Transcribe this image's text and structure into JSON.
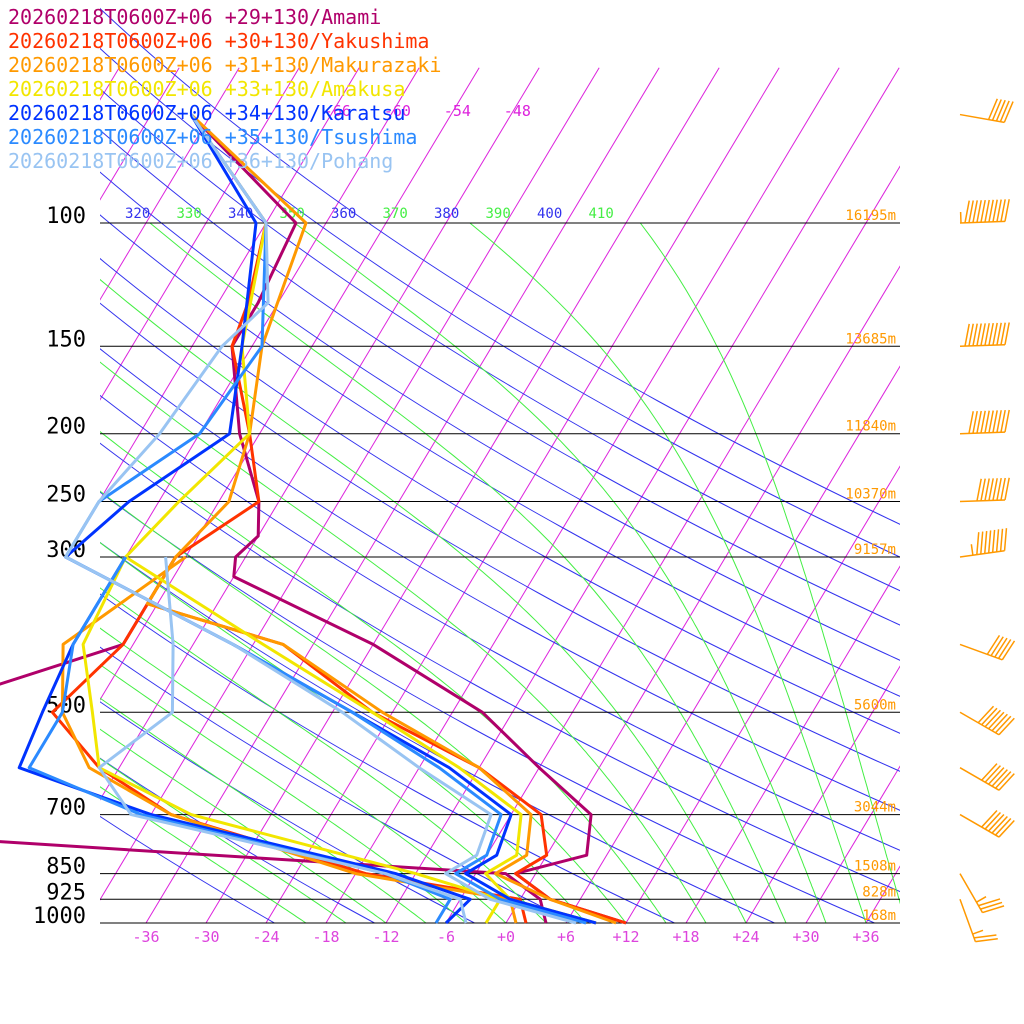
{
  "chart_data": {
    "type": "line",
    "pressure_levels": [
      100,
      150,
      200,
      250,
      300,
      500,
      700,
      850,
      925,
      1000
    ],
    "pressure_labels": [
      "100",
      "150",
      "200",
      "250",
      "300",
      "500",
      "700",
      "850",
      "925",
      "1000"
    ],
    "height_labels": [
      {
        "p": 100,
        "text": "16195m"
      },
      {
        "p": 150,
        "text": "13685m"
      },
      {
        "p": 200,
        "text": "11840m"
      },
      {
        "p": 250,
        "text": "10370m"
      },
      {
        "p": 300,
        "text": "9157m"
      },
      {
        "p": 500,
        "text": "5600m"
      },
      {
        "p": 700,
        "text": "3044m"
      },
      {
        "p": 850,
        "text": "1508m"
      },
      {
        "p": 925,
        "text": "828m"
      },
      {
        "p": 1000,
        "text": "168m"
      }
    ],
    "temperature_ticks": [
      "-36",
      "-30",
      "-24",
      "-18",
      "-12",
      "-6",
      "+0",
      "+6",
      "+12",
      "+18",
      "+24",
      "+30",
      "+36"
    ],
    "temperature_tick_values": [
      -36,
      -30,
      -24,
      -18,
      -12,
      -6,
      0,
      6,
      12,
      18,
      24,
      30,
      36
    ],
    "upper_isotherm_labels": [
      {
        "t": -66,
        "text": "-66"
      },
      {
        "t": -60,
        "text": "-60"
      },
      {
        "t": -54,
        "text": "-54"
      },
      {
        "t": -48,
        "text": "-48"
      }
    ],
    "theta_labels": [
      "320",
      "330",
      "340",
      "350",
      "360",
      "370",
      "380",
      "390",
      "400",
      "410"
    ],
    "series": [
      {
        "name": "20260218T0600Z+06 +29+130/Amami",
        "color": "#b0006a",
        "temperature": [
          [
            70,
            -80
          ],
          [
            100,
            -63
          ],
          [
            130,
            -62
          ],
          [
            150,
            -62
          ],
          [
            200,
            -56
          ],
          [
            250,
            -50
          ],
          [
            280,
            -48
          ],
          [
            300,
            -49
          ],
          [
            320,
            -48
          ],
          [
            400,
            -30
          ],
          [
            500,
            -15
          ],
          [
            600,
            -6
          ],
          [
            700,
            2
          ],
          [
            800,
            4
          ],
          [
            850,
            -2
          ],
          [
            925,
            3
          ],
          [
            1000,
            12
          ]
        ],
        "dewpoint": [
          [
            300,
            -55
          ],
          [
            400,
            -55
          ],
          [
            500,
            -72
          ],
          [
            610,
            -100
          ],
          [
            700,
            -100
          ],
          [
            850,
            -3
          ],
          [
            925,
            2
          ],
          [
            1000,
            4
          ]
        ]
      },
      {
        "name": "20260218T0600Z+06 +30+130/Yakushima",
        "color": "#ff3300",
        "temperature": [
          [
            70,
            -80
          ],
          [
            100,
            -66
          ],
          [
            130,
            -63
          ],
          [
            150,
            -62
          ],
          [
            200,
            -55
          ],
          [
            250,
            -50
          ],
          [
            300,
            -55
          ],
          [
            350,
            -55
          ],
          [
            400,
            -39
          ],
          [
            500,
            -26
          ],
          [
            600,
            -12
          ],
          [
            700,
            -3
          ],
          [
            800,
            0
          ],
          [
            850,
            -2
          ],
          [
            925,
            3
          ],
          [
            1000,
            12
          ]
        ],
        "dewpoint": [
          [
            300,
            -55
          ],
          [
            400,
            -55
          ],
          [
            500,
            -58
          ],
          [
            600,
            -50
          ],
          [
            700,
            -40
          ],
          [
            850,
            -17
          ],
          [
            925,
            0
          ],
          [
            1000,
            2
          ]
        ]
      },
      {
        "name": "20260218T0600Z+06 +31+130/Makurazaki",
        "color": "#ff9900",
        "temperature": [
          [
            70,
            -80
          ],
          [
            100,
            -62
          ],
          [
            150,
            -59
          ],
          [
            200,
            -55
          ],
          [
            250,
            -53
          ],
          [
            300,
            -55
          ],
          [
            350,
            -55
          ],
          [
            400,
            -39
          ],
          [
            500,
            -25
          ],
          [
            600,
            -12
          ],
          [
            700,
            -4
          ],
          [
            800,
            -2
          ],
          [
            850,
            -4
          ],
          [
            925,
            3
          ],
          [
            1000,
            11
          ]
        ],
        "dewpoint": [
          [
            300,
            -54
          ],
          [
            400,
            -61
          ],
          [
            500,
            -57
          ],
          [
            600,
            -51
          ],
          [
            700,
            -40
          ],
          [
            850,
            -18
          ],
          [
            925,
            -1
          ],
          [
            1000,
            1
          ]
        ]
      },
      {
        "name": "20260218T0600Z+06 +33+130/Amakusa",
        "color": "#f2e600",
        "temperature": [
          [
            70,
            -80
          ],
          [
            100,
            -66
          ],
          [
            150,
            -61
          ],
          [
            200,
            -55
          ],
          [
            250,
            -58
          ],
          [
            300,
            -60
          ],
          [
            400,
            -41
          ],
          [
            500,
            -26
          ],
          [
            600,
            -14
          ],
          [
            700,
            -5
          ],
          [
            800,
            -3
          ],
          [
            850,
            -5
          ],
          [
            925,
            -1
          ],
          [
            1000,
            9
          ]
        ],
        "dewpoint": [
          [
            300,
            -60
          ],
          [
            400,
            -59
          ],
          [
            500,
            -54
          ],
          [
            600,
            -50
          ],
          [
            700,
            -38
          ],
          [
            850,
            -12
          ],
          [
            925,
            -2
          ],
          [
            1000,
            -2
          ]
        ]
      },
      {
        "name": "20260218T0600Z+06 +34+130/Karatsu",
        "color": "#0033ff",
        "temperature": [
          [
            70,
            -80
          ],
          [
            100,
            -67
          ],
          [
            150,
            -61
          ],
          [
            200,
            -57
          ],
          [
            250,
            -63
          ],
          [
            300,
            -66
          ],
          [
            400,
            -44
          ],
          [
            500,
            -28
          ],
          [
            600,
            -15
          ],
          [
            700,
            -6
          ],
          [
            800,
            -5
          ],
          [
            850,
            -7
          ],
          [
            925,
            -1
          ],
          [
            1000,
            9
          ]
        ],
        "dewpoint": [
          [
            300,
            -60
          ],
          [
            400,
            -60
          ],
          [
            500,
            -59
          ],
          [
            600,
            -58
          ],
          [
            700,
            -42
          ],
          [
            850,
            -14
          ],
          [
            925,
            -5
          ],
          [
            1000,
            -6
          ]
        ]
      },
      {
        "name": "20260218T0600Z+06 +35+130/Tsushima",
        "color": "#2b8aff",
        "temperature": [
          [
            70,
            -80
          ],
          [
            100,
            -66
          ],
          [
            150,
            -59
          ],
          [
            200,
            -60
          ],
          [
            250,
            -66
          ],
          [
            300,
            -66
          ],
          [
            400,
            -44
          ],
          [
            500,
            -28
          ],
          [
            600,
            -16
          ],
          [
            700,
            -7
          ],
          [
            800,
            -6
          ],
          [
            850,
            -8
          ],
          [
            925,
            -2
          ],
          [
            1000,
            8
          ]
        ],
        "dewpoint": [
          [
            300,
            -60
          ],
          [
            400,
            -60
          ],
          [
            500,
            -57
          ],
          [
            600,
            -57
          ],
          [
            700,
            -43
          ],
          [
            850,
            -15
          ],
          [
            925,
            -7
          ],
          [
            1000,
            -7
          ]
        ]
      },
      {
        "name": "20260218T0600Z+06 +36+130/Pohang",
        "color": "#99c4f2",
        "temperature": [
          [
            70,
            -80
          ],
          [
            100,
            -66
          ],
          [
            130,
            -61
          ],
          [
            150,
            -63
          ],
          [
            200,
            -64
          ],
          [
            250,
            -66
          ],
          [
            300,
            -66
          ],
          [
            400,
            -44
          ],
          [
            500,
            -29
          ],
          [
            600,
            -18
          ],
          [
            700,
            -8
          ],
          [
            800,
            -7
          ],
          [
            850,
            -9
          ],
          [
            925,
            -3
          ],
          [
            1000,
            7
          ]
        ],
        "dewpoint": [
          [
            300,
            -56
          ],
          [
            400,
            -50
          ],
          [
            500,
            -46
          ],
          [
            600,
            -50
          ],
          [
            700,
            -44
          ],
          [
            850,
            -15
          ],
          [
            925,
            -6
          ],
          [
            1000,
            -4
          ]
        ]
      }
    ],
    "wind_barbs": [
      {
        "p": 70,
        "speed_kt": 50,
        "dir": 280
      },
      {
        "p": 100,
        "speed_kt": 115,
        "dir": 268
      },
      {
        "p": 150,
        "speed_kt": 110,
        "dir": 268
      },
      {
        "p": 200,
        "speed_kt": 100,
        "dir": 268
      },
      {
        "p": 250,
        "speed_kt": 80,
        "dir": 268
      },
      {
        "p": 300,
        "speed_kt": 85,
        "dir": 262
      },
      {
        "p": 400,
        "speed_kt": 50,
        "dir": 290
      },
      {
        "p": 500,
        "speed_kt": 70,
        "dir": 300
      },
      {
        "p": 600,
        "speed_kt": 60,
        "dir": 300
      },
      {
        "p": 700,
        "speed_kt": 60,
        "dir": 300
      },
      {
        "p": 850,
        "speed_kt": 35,
        "dir": 330
      },
      {
        "p": 925,
        "speed_kt": 25,
        "dir": 340
      }
    ],
    "colors": {
      "isotherm": "#dd22dd",
      "dry_adiabat": "#3333ee",
      "moist_adiabat": "#44ee44",
      "pressure_line": "#000000",
      "height_label": "#ff9900",
      "temp_tick": "#dd44dd",
      "wind_barb": "#ff9900"
    }
  }
}
